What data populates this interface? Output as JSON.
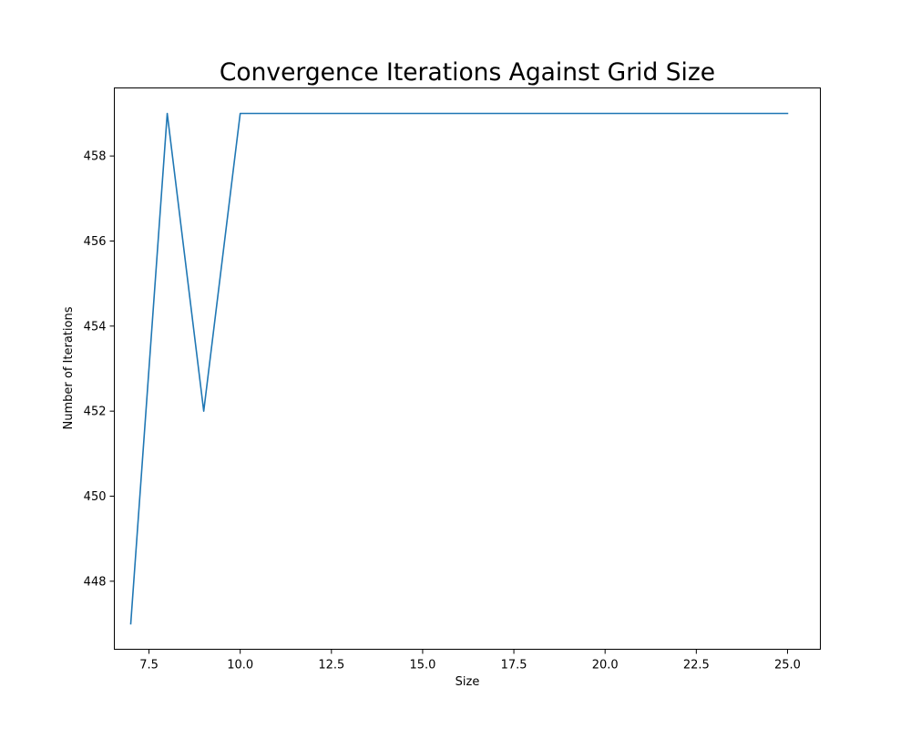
{
  "chart_data": {
    "type": "line",
    "title": "Convergence Iterations Against Grid Size",
    "xlabel": "Size",
    "ylabel": "Number of Iterations",
    "xlim": [
      6.55,
      25.9
    ],
    "ylim": [
      446.4,
      459.6
    ],
    "xticks": [
      7.5,
      10.0,
      12.5,
      15.0,
      17.5,
      20.0,
      22.5,
      25.0
    ],
    "xtick_labels": [
      "7.5",
      "10.0",
      "12.5",
      "15.0",
      "17.5",
      "20.0",
      "22.5",
      "25.0"
    ],
    "yticks": [
      448,
      450,
      452,
      454,
      456,
      458
    ],
    "ytick_labels": [
      "448",
      "450",
      "452",
      "454",
      "456",
      "458"
    ],
    "grid": false,
    "series": [
      {
        "color": "#1f77b4",
        "x": [
          7,
          8,
          9,
          10,
          11,
          12,
          13,
          14,
          15,
          16,
          17,
          18,
          19,
          20,
          21,
          22,
          23,
          24,
          25
        ],
        "y": [
          447,
          459,
          452,
          459,
          459,
          459,
          459,
          459,
          459,
          459,
          459,
          459,
          459,
          459,
          459,
          459,
          459,
          459,
          459
        ]
      }
    ]
  }
}
